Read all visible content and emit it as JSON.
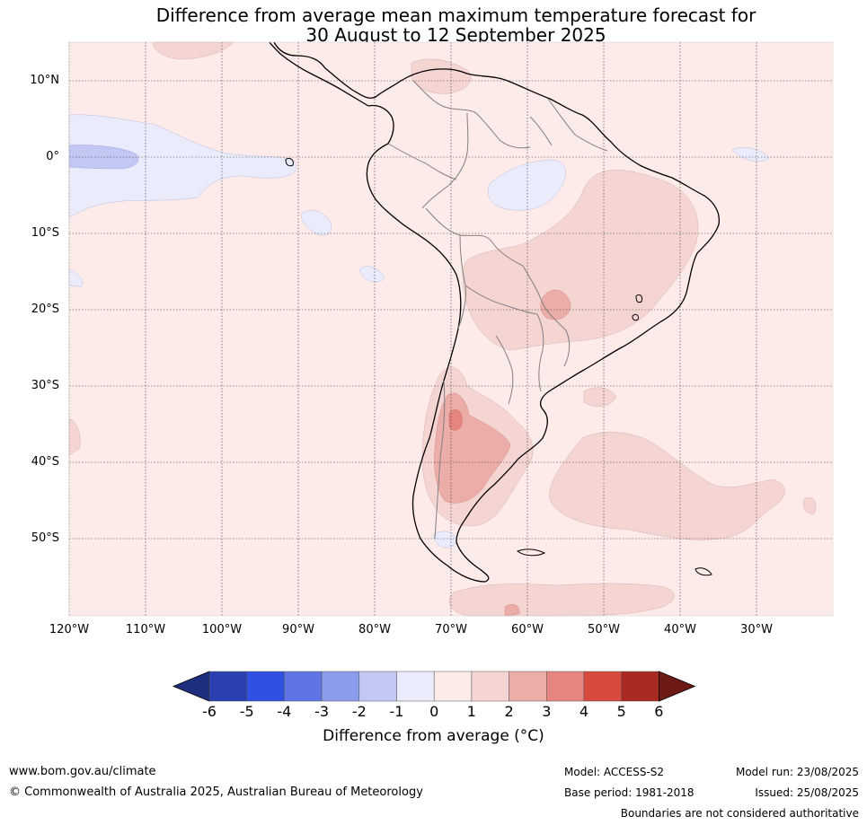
{
  "title_line1": "Difference from average mean maximum temperature forecast for",
  "title_line2": "30 August to 12 September 2025",
  "lat_labels": [
    "10°N",
    "0°",
    "10°S",
    "20°S",
    "30°S",
    "40°S",
    "50°S"
  ],
  "lon_labels": [
    "120°W",
    "110°W",
    "100°W",
    "90°W",
    "80°W",
    "70°W",
    "60°W",
    "50°W",
    "40°W",
    "30°W"
  ],
  "colorbar": {
    "ticks": [
      "-6",
      "-5",
      "-4",
      "-3",
      "-2",
      "-1",
      "0",
      "1",
      "2",
      "3",
      "4",
      "5",
      "6"
    ],
    "colors": [
      "#1f2f80",
      "#2a3fb0",
      "#2f50e0",
      "#5f75e6",
      "#8c9cec",
      "#c2c8f3",
      "#eaecfb",
      "#fcebe9",
      "#f5d5d2",
      "#ecaca7",
      "#e68480",
      "#d94a3e",
      "#a82a20",
      "#6e1a16"
    ],
    "label": "Difference from average (°C)"
  },
  "footer": {
    "url": "www.bom.gov.au/climate",
    "copyright": "© Commonwealth of Australia 2025, Australian Bureau of Meteorology",
    "model": "Model: ACCESS-S2",
    "base_period": "Base period: 1981-2018",
    "model_run": "Model run: 23/08/2025",
    "issued": "Issued: 25/08/2025",
    "boundaries": "Boundaries are not considered authoritative"
  }
}
